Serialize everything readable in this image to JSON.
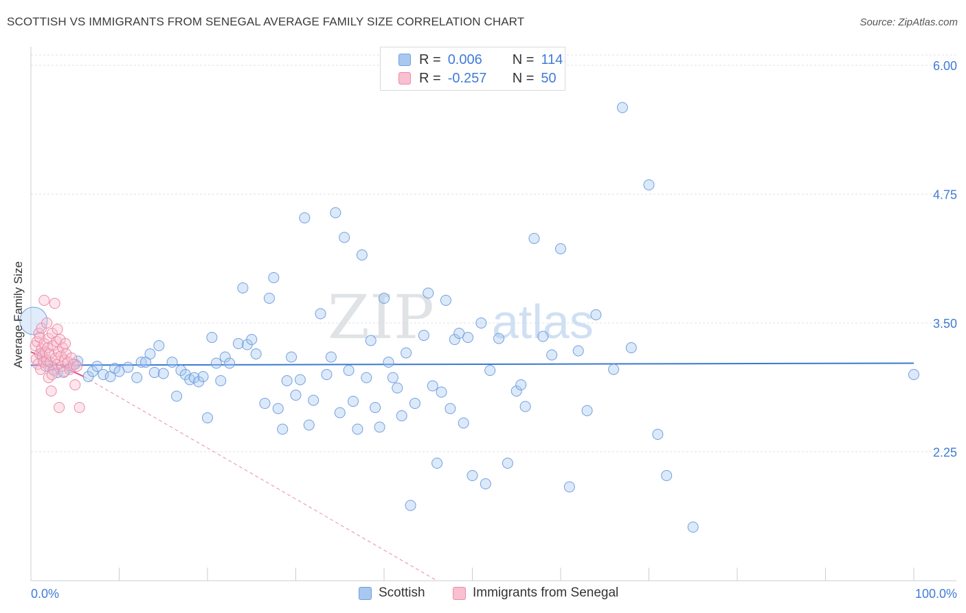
{
  "title": "SCOTTISH VS IMMIGRANTS FROM SENEGAL AVERAGE FAMILY SIZE CORRELATION CHART",
  "source": "Source: ZipAtlas.com",
  "watermark": {
    "zip": "ZIP",
    "atlas": "atlas"
  },
  "legend": {
    "rows": [
      {
        "r_label": "R =",
        "r_value": "0.006",
        "n_label": "N =",
        "n_value": "114",
        "color": "#a8c8f0",
        "border": "#6f9fe0"
      },
      {
        "r_label": "R =",
        "r_value": "-0.257",
        "n_label": "N =",
        "n_value": "50",
        "color": "#f8c0d0",
        "border": "#ec8aa8"
      }
    ]
  },
  "bottom_legend": [
    {
      "label": "Scottish",
      "color": "#a8c8f0",
      "border": "#6f9fe0"
    },
    {
      "label": "Immigrants from Senegal",
      "color": "#f8c0d0",
      "border": "#ec8aa8"
    }
  ],
  "colors": {
    "blue": "#3a78d0",
    "pink": "#e8487a",
    "grid": "#dde1e6",
    "axis_text": "#3f7bd6"
  },
  "chart_data": {
    "type": "scatter",
    "title": "SCOTTISH VS IMMIGRANTS FROM SENEGAL AVERAGE FAMILY SIZE CORRELATION CHART",
    "xlabel": "",
    "ylabel": "Average Family Size",
    "xlim": [
      0,
      100
    ],
    "ylim": [
      1.0,
      6.1
    ],
    "x_tick_labels": [
      "0.0%",
      "100.0%"
    ],
    "y_ticks": [
      2.25,
      3.5,
      4.75,
      6.0
    ],
    "y_tick_labels": [
      "2.25",
      "3.50",
      "4.75",
      "6.00"
    ],
    "grid": true,
    "legend_position": "top-center",
    "series": [
      {
        "name": "Scottish",
        "color": "#6f9fe0",
        "trend": {
          "x": [
            0,
            100
          ],
          "y": [
            3.09,
            3.11
          ]
        },
        "points": [
          [
            0.3,
            3.52
          ],
          [
            1.2,
            3.2
          ],
          [
            1.5,
            3.12
          ],
          [
            2.0,
            3.08
          ],
          [
            2.5,
            3.05
          ],
          [
            3.0,
            3.02
          ],
          [
            3.8,
            3.03
          ],
          [
            4.5,
            3.07
          ],
          [
            5.0,
            3.1
          ],
          [
            5.3,
            3.13
          ],
          [
            6.5,
            2.98
          ],
          [
            7.0,
            3.03
          ],
          [
            7.5,
            3.08
          ],
          [
            8.2,
            3.0
          ],
          [
            9.0,
            2.98
          ],
          [
            9.5,
            3.06
          ],
          [
            10.0,
            3.03
          ],
          [
            11.0,
            3.07
          ],
          [
            12.0,
            2.97
          ],
          [
            12.5,
            3.12
          ],
          [
            13.0,
            3.12
          ],
          [
            13.5,
            3.2
          ],
          [
            14.0,
            3.02
          ],
          [
            14.5,
            3.28
          ],
          [
            15.0,
            3.01
          ],
          [
            16.0,
            3.12
          ],
          [
            16.5,
            2.79
          ],
          [
            17.0,
            3.04
          ],
          [
            17.5,
            3.0
          ],
          [
            18.0,
            2.95
          ],
          [
            18.5,
            2.97
          ],
          [
            19.0,
            2.93
          ],
          [
            19.5,
            2.98
          ],
          [
            20.0,
            2.58
          ],
          [
            20.5,
            3.36
          ],
          [
            21.0,
            3.11
          ],
          [
            21.5,
            2.94
          ],
          [
            22.0,
            3.17
          ],
          [
            22.5,
            3.11
          ],
          [
            23.5,
            3.3
          ],
          [
            24.0,
            3.84
          ],
          [
            24.5,
            3.29
          ],
          [
            25.0,
            3.34
          ],
          [
            25.5,
            3.2
          ],
          [
            26.5,
            2.72
          ],
          [
            27.0,
            3.74
          ],
          [
            27.5,
            3.94
          ],
          [
            28.0,
            2.67
          ],
          [
            28.5,
            2.47
          ],
          [
            29.0,
            2.94
          ],
          [
            29.5,
            3.17
          ],
          [
            30.0,
            2.8
          ],
          [
            30.5,
            2.95
          ],
          [
            31.0,
            4.52
          ],
          [
            31.5,
            2.51
          ],
          [
            32.0,
            2.75
          ],
          [
            32.8,
            3.59
          ],
          [
            33.5,
            3.0
          ],
          [
            34.0,
            3.17
          ],
          [
            34.5,
            4.57
          ],
          [
            35.0,
            2.63
          ],
          [
            35.5,
            4.33
          ],
          [
            36.0,
            3.04
          ],
          [
            36.5,
            2.74
          ],
          [
            37.0,
            2.47
          ],
          [
            37.5,
            4.16
          ],
          [
            38.0,
            2.97
          ],
          [
            38.5,
            3.33
          ],
          [
            39.0,
            2.68
          ],
          [
            39.5,
            2.49
          ],
          [
            40.0,
            3.74
          ],
          [
            40.5,
            3.12
          ],
          [
            41.0,
            2.97
          ],
          [
            41.5,
            2.87
          ],
          [
            42.0,
            2.6
          ],
          [
            42.5,
            3.21
          ],
          [
            43.0,
            1.73
          ],
          [
            43.5,
            2.72
          ],
          [
            44.5,
            3.38
          ],
          [
            45.0,
            3.79
          ],
          [
            45.5,
            2.89
          ],
          [
            46.0,
            2.14
          ],
          [
            46.5,
            2.83
          ],
          [
            47.0,
            3.72
          ],
          [
            47.5,
            2.67
          ],
          [
            48.0,
            3.34
          ],
          [
            48.5,
            3.4
          ],
          [
            49.0,
            2.53
          ],
          [
            49.5,
            3.36
          ],
          [
            50.0,
            2.02
          ],
          [
            51.0,
            3.5
          ],
          [
            51.5,
            1.94
          ],
          [
            52.0,
            3.04
          ],
          [
            53.0,
            3.35
          ],
          [
            54.0,
            2.14
          ],
          [
            55.0,
            2.84
          ],
          [
            55.5,
            2.9
          ],
          [
            56.0,
            2.69
          ],
          [
            57.0,
            4.32
          ],
          [
            58.0,
            3.37
          ],
          [
            59.0,
            3.19
          ],
          [
            60.0,
            4.22
          ],
          [
            61.0,
            1.91
          ],
          [
            62.0,
            3.23
          ],
          [
            63.0,
            2.65
          ],
          [
            64.0,
            3.58
          ],
          [
            66.0,
            3.05
          ],
          [
            67.0,
            5.59
          ],
          [
            68.0,
            3.26
          ],
          [
            70.0,
            4.84
          ],
          [
            71.0,
            2.42
          ],
          [
            72.0,
            2.02
          ],
          [
            75.0,
            1.52
          ],
          [
            100.0,
            3.0
          ]
        ]
      },
      {
        "name": "Immigrants from Senegal",
        "color": "#ec8aa8",
        "trend": {
          "x": [
            0,
            6
          ],
          "y": [
            3.22,
            2.98
          ]
        },
        "trend_extension": {
          "x": [
            6,
            46
          ],
          "y": [
            2.98,
            1.0
          ]
        },
        "points": [
          [
            0.5,
            3.28
          ],
          [
            0.6,
            3.15
          ],
          [
            0.7,
            3.32
          ],
          [
            0.8,
            3.1
          ],
          [
            0.9,
            3.4
          ],
          [
            1.0,
            3.2
          ],
          [
            1.0,
            3.36
          ],
          [
            1.1,
            3.05
          ],
          [
            1.2,
            3.25
          ],
          [
            1.2,
            3.45
          ],
          [
            1.3,
            3.18
          ],
          [
            1.4,
            3.12
          ],
          [
            1.5,
            3.3
          ],
          [
            1.5,
            3.72
          ],
          [
            1.6,
            3.22
          ],
          [
            1.7,
            3.08
          ],
          [
            1.8,
            3.5
          ],
          [
            1.8,
            3.14
          ],
          [
            1.9,
            3.26
          ],
          [
            2.0,
            3.35
          ],
          [
            2.0,
            2.97
          ],
          [
            2.1,
            3.2
          ],
          [
            2.2,
            3.12
          ],
          [
            2.3,
            2.84
          ],
          [
            2.4,
            3.4
          ],
          [
            2.5,
            3.28
          ],
          [
            2.6,
            3.04
          ],
          [
            2.7,
            3.69
          ],
          [
            2.8,
            3.16
          ],
          [
            2.9,
            3.32
          ],
          [
            3.0,
            3.1
          ],
          [
            3.1,
            3.22
          ],
          [
            3.2,
            2.68
          ],
          [
            3.3,
            3.34
          ],
          [
            3.4,
            3.18
          ],
          [
            3.5,
            3.08
          ],
          [
            3.6,
            3.26
          ],
          [
            3.7,
            3.02
          ],
          [
            3.8,
            3.14
          ],
          [
            3.9,
            3.3
          ],
          [
            4.0,
            3.2
          ],
          [
            4.2,
            3.12
          ],
          [
            4.4,
            3.05
          ],
          [
            4.6,
            3.16
          ],
          [
            4.8,
            3.1
          ],
          [
            5.0,
            2.9
          ],
          [
            5.2,
            3.08
          ],
          [
            5.5,
            2.68
          ],
          [
            3.0,
            3.44
          ],
          [
            2.4,
            3.0
          ]
        ]
      }
    ]
  }
}
